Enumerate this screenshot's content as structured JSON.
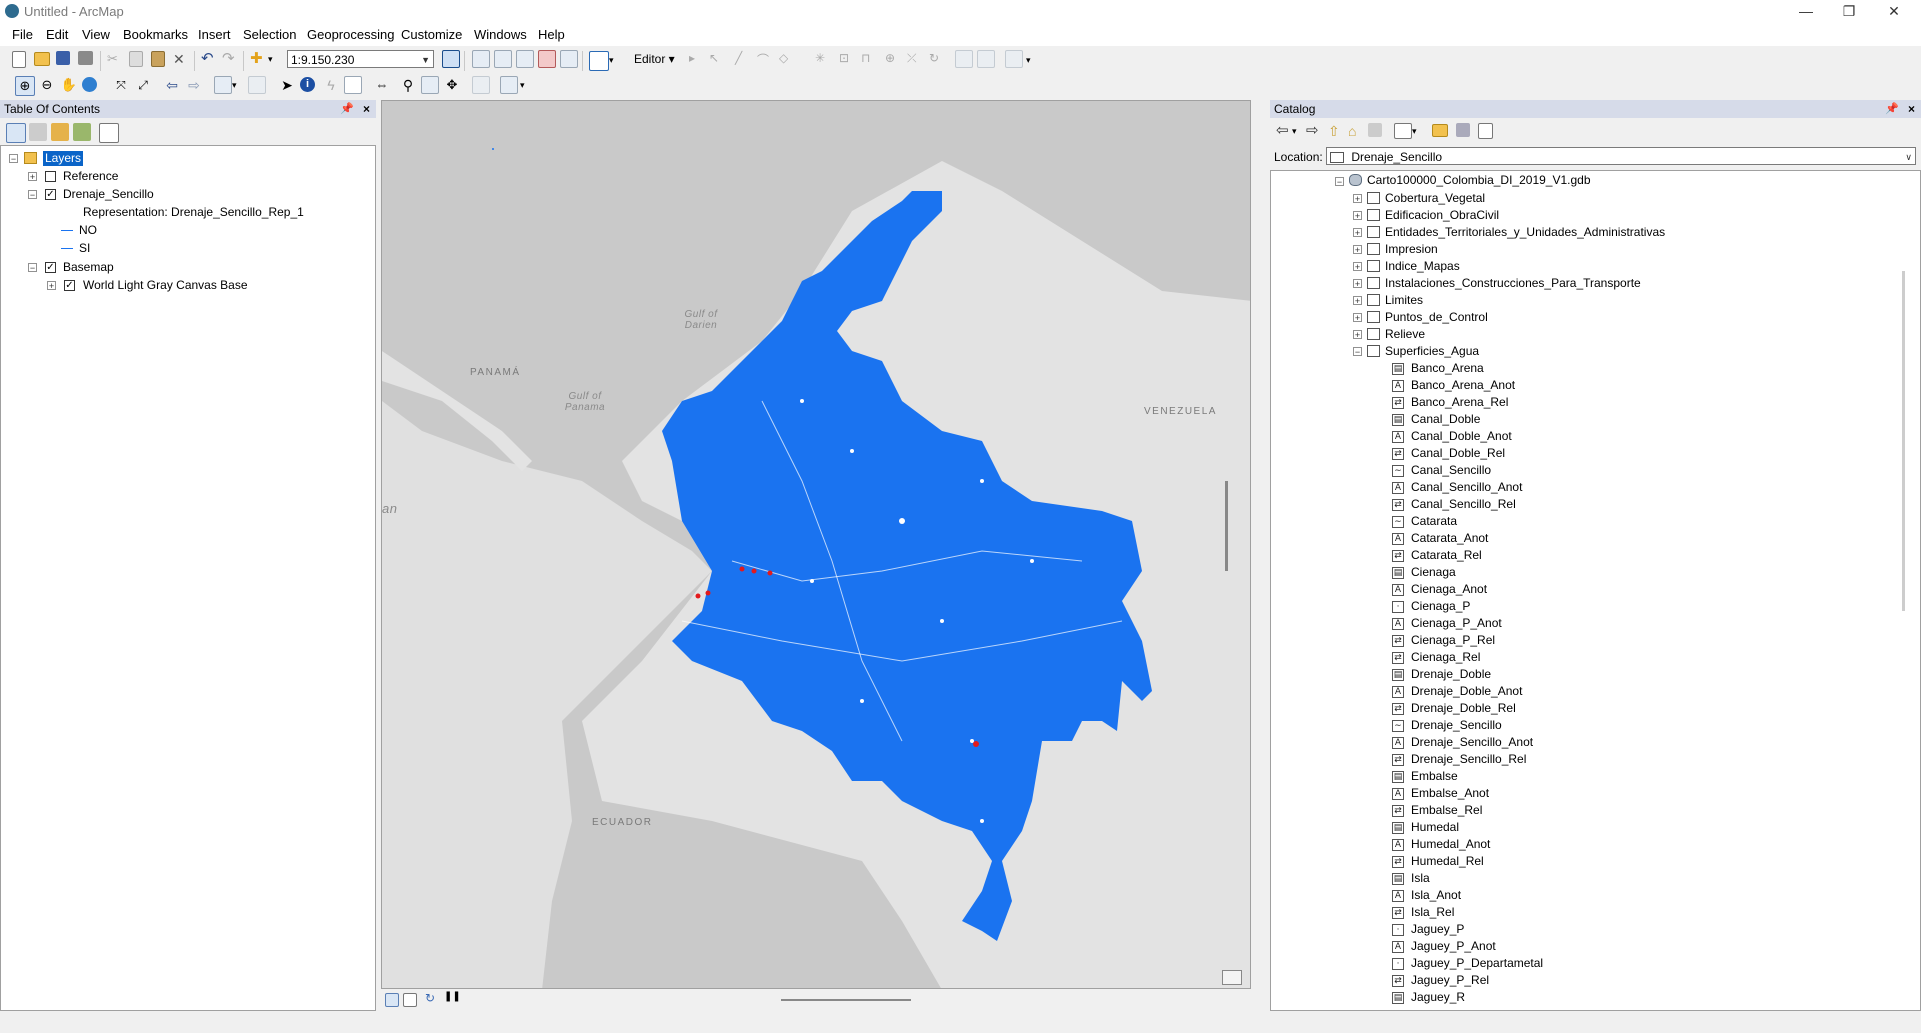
{
  "window": {
    "title": "Untitled - ArcMap",
    "minimize": "—",
    "restore": "❐",
    "close": "✕"
  },
  "menu": [
    "File",
    "Edit",
    "View",
    "Bookmarks",
    "Insert",
    "Selection",
    "Geoprocessing",
    "Customize",
    "Windows",
    "Help"
  ],
  "toolbar": {
    "scale": "1:9.150.230",
    "editor_label": "Editor ▾"
  },
  "toc": {
    "title": "Table Of Contents",
    "layers_label": "Layers",
    "items": [
      {
        "label": "Reference",
        "checked": false
      },
      {
        "label": "Drenaje_Sencillo",
        "checked": true
      },
      {
        "label": "Representation: Drenaje_Sencillo_Rep_1"
      },
      {
        "label": "NO"
      },
      {
        "label": "SI"
      },
      {
        "label": "Basemap",
        "checked": true
      },
      {
        "label": "World Light Gray Canvas Base",
        "checked": true
      }
    ]
  },
  "map": {
    "labels": {
      "panama": "PANAMÁ",
      "venezuela": "VENEZUELA",
      "ecuador": "ECUADOR",
      "gulf_darien": "Gulf of Darien",
      "gulf_panama": "Gulf of Panama",
      "an": "an"
    },
    "colors": {
      "land": "#e0e0e0",
      "water": "#c8c8c8",
      "drainage": "#1a73f0",
      "points": "#e31a1c"
    }
  },
  "catalog": {
    "title": "Catalog",
    "location_label": "Location:",
    "location_value": "Drenaje_Sencillo",
    "gdb": "Carto100000_Colombia_DI_2019_V1.gdb",
    "datasets": [
      "Cobertura_Vegetal",
      "Edificacion_ObraCivil",
      "Entidades_Territoriales_y_Unidades_Administrativas",
      "Impresion",
      "Indice_Mapas",
      "Instalaciones_Construcciones_Para_Transporte",
      "Limites",
      "Puntos_de_Control",
      "Relieve",
      "Superficies_Agua"
    ],
    "classes": [
      {
        "name": "Banco_Arena",
        "icon": "poly"
      },
      {
        "name": "Banco_Arena_Anot",
        "icon": "anno"
      },
      {
        "name": "Banco_Arena_Rel",
        "icon": "rel"
      },
      {
        "name": "Canal_Doble",
        "icon": "poly"
      },
      {
        "name": "Canal_Doble_Anot",
        "icon": "anno"
      },
      {
        "name": "Canal_Doble_Rel",
        "icon": "rel"
      },
      {
        "name": "Canal_Sencillo",
        "icon": "line"
      },
      {
        "name": "Canal_Sencillo_Anot",
        "icon": "anno"
      },
      {
        "name": "Canal_Sencillo_Rel",
        "icon": "rel"
      },
      {
        "name": "Catarata",
        "icon": "line"
      },
      {
        "name": "Catarata_Anot",
        "icon": "anno"
      },
      {
        "name": "Catarata_Rel",
        "icon": "rel"
      },
      {
        "name": "Cienaga",
        "icon": "poly"
      },
      {
        "name": "Cienaga_Anot",
        "icon": "anno"
      },
      {
        "name": "Cienaga_P",
        "icon": "point"
      },
      {
        "name": "Cienaga_P_Anot",
        "icon": "anno"
      },
      {
        "name": "Cienaga_P_Rel",
        "icon": "rel"
      },
      {
        "name": "Cienaga_Rel",
        "icon": "rel"
      },
      {
        "name": "Drenaje_Doble",
        "icon": "poly"
      },
      {
        "name": "Drenaje_Doble_Anot",
        "icon": "anno"
      },
      {
        "name": "Drenaje_Doble_Rel",
        "icon": "rel"
      },
      {
        "name": "Drenaje_Sencillo",
        "icon": "line"
      },
      {
        "name": "Drenaje_Sencillo_Anot",
        "icon": "anno"
      },
      {
        "name": "Drenaje_Sencillo_Rel",
        "icon": "rel"
      },
      {
        "name": "Embalse",
        "icon": "poly"
      },
      {
        "name": "Embalse_Anot",
        "icon": "anno"
      },
      {
        "name": "Embalse_Rel",
        "icon": "rel"
      },
      {
        "name": "Humedal",
        "icon": "poly"
      },
      {
        "name": "Humedal_Anot",
        "icon": "anno"
      },
      {
        "name": "Humedal_Rel",
        "icon": "rel"
      },
      {
        "name": "Isla",
        "icon": "poly"
      },
      {
        "name": "Isla_Anot",
        "icon": "anno"
      },
      {
        "name": "Isla_Rel",
        "icon": "rel"
      },
      {
        "name": "Jaguey_P",
        "icon": "point"
      },
      {
        "name": "Jaguey_P_Anot",
        "icon": "anno"
      },
      {
        "name": "Jaguey_P_Departametal",
        "icon": "point"
      },
      {
        "name": "Jaguey_P_Rel",
        "icon": "rel"
      },
      {
        "name": "Jaguey_R",
        "icon": "poly"
      }
    ]
  }
}
